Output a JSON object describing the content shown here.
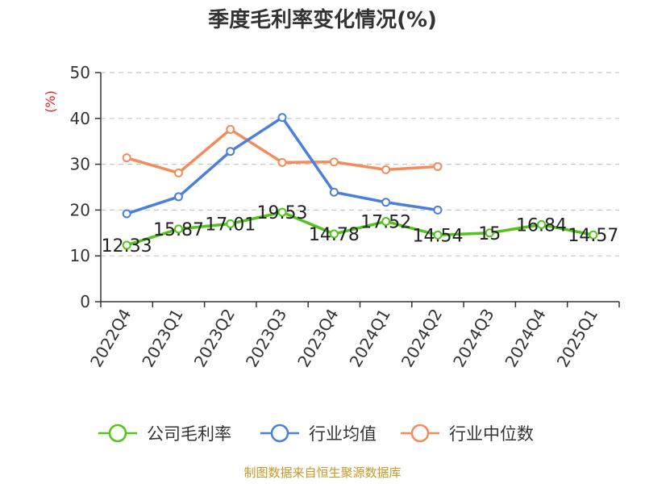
{
  "chart_data": {
    "type": "line",
    "title": "季度毛利率变化情况(%)",
    "ylabel": "(%)",
    "xlabel": "",
    "ylim": [
      0,
      50
    ],
    "yticks": [
      0,
      10,
      20,
      30,
      40,
      50
    ],
    "grid": true,
    "legend_position": "bottom",
    "categories": [
      "2022Q4",
      "2023Q1",
      "2023Q2",
      "2023Q3",
      "2023Q4",
      "2024Q1",
      "2024Q2",
      "2024Q3",
      "2024Q4",
      "2025Q1"
    ],
    "series": [
      {
        "name": "公司毛利率",
        "color": "#52c41a",
        "values": [
          12.33,
          15.87,
          17.01,
          19.53,
          14.78,
          17.52,
          14.54,
          15,
          16.84,
          14.57
        ],
        "labels": [
          "12.33",
          "15.87",
          "17.01",
          "19.53",
          "14.78",
          "17.52",
          "14.54",
          "15",
          "16.84",
          "14.57"
        ]
      },
      {
        "name": "行业均值",
        "color": "#4a7fdc",
        "values": [
          19.2,
          22.9,
          32.8,
          40.2,
          23.9,
          21.7,
          20.0,
          null,
          null,
          null
        ]
      },
      {
        "name": "行业中位数",
        "color": "#f38b5a",
        "values": [
          31.4,
          28.1,
          37.6,
          30.4,
          30.5,
          28.8,
          29.5,
          null,
          null,
          null
        ]
      }
    ],
    "colors": {
      "ylabel": "#e02020",
      "source": "#c8972a",
      "grid": "#c8c8c8",
      "axis": "#333333"
    }
  },
  "footer": {
    "source": "制图数据来自恒生聚源数据库"
  }
}
